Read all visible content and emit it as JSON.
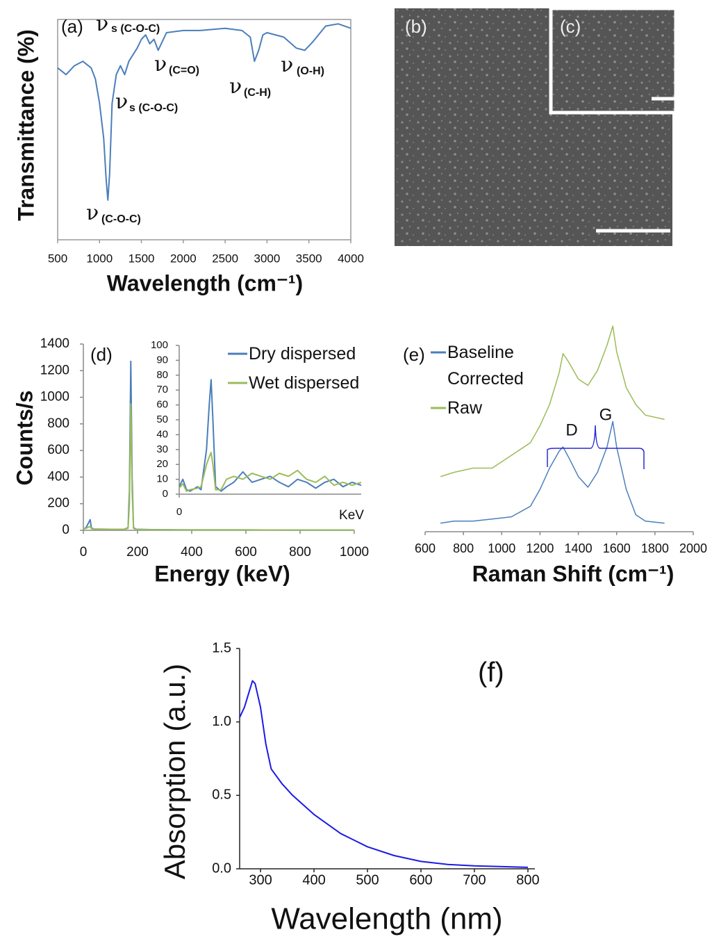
{
  "chart_data": [
    {
      "type": "line",
      "panel_label": "(a)",
      "xlabel": "Wavelength (cm⁻¹)",
      "ylabel": "Transmittance (%)",
      "xlim": [
        500,
        4000
      ],
      "xticks": [
        500,
        1000,
        1500,
        2000,
        2500,
        3000,
        3500,
        4000
      ],
      "ylim": [
        0,
        100
      ],
      "x": [
        500,
        600,
        700,
        800,
        900,
        950,
        1000,
        1050,
        1080,
        1100,
        1120,
        1150,
        1200,
        1250,
        1300,
        1350,
        1400,
        1450,
        1500,
        1550,
        1600,
        1650,
        1700,
        1750,
        1800,
        2000,
        2200,
        2500,
        2700,
        2800,
        2850,
        2900,
        2950,
        3000,
        3200,
        3350,
        3450,
        3550,
        3700,
        3850,
        4000
      ],
      "series": [
        {
          "color": "#4a7ebb",
          "values": [
            78,
            75,
            79,
            81,
            78,
            73,
            62,
            46,
            27,
            18,
            30,
            62,
            75,
            79,
            75,
            81,
            84,
            87,
            91,
            93,
            89,
            91,
            86,
            90,
            94,
            95,
            95,
            96,
            95,
            92,
            81,
            86,
            93,
            94,
            92,
            87,
            86,
            90,
            97,
            98,
            96
          ]
        }
      ],
      "annotations": [
        {
          "symbol": "ν",
          "sub": "s (C-O-C)"
        },
        {
          "symbol": "ν",
          "sub": "(C=O)"
        },
        {
          "symbol": "ν",
          "sub": "s (C-O-C)"
        },
        {
          "symbol": "ν",
          "sub": "(C-O-C)"
        },
        {
          "symbol": "ν",
          "sub": "(C-H)"
        },
        {
          "symbol": "ν",
          "sub": "(O-H)"
        }
      ]
    },
    {
      "type": "image",
      "panel_label": "(b)"
    },
    {
      "type": "image",
      "panel_label": "(c)"
    },
    {
      "type": "line",
      "panel_label": "(d)",
      "xlabel": "Energy (keV)",
      "ylabel": "Counts/s",
      "xlim": [
        0,
        1000
      ],
      "xticks": [
        0,
        200,
        400,
        600,
        800,
        1000
      ],
      "ylim": [
        0,
        1400
      ],
      "yticks": [
        0,
        200,
        400,
        600,
        800,
        1000,
        1200,
        1400
      ],
      "x": [
        0,
        10,
        25,
        30,
        40,
        100,
        150,
        165,
        170,
        175,
        180,
        185,
        195,
        250,
        400,
        600,
        800,
        1000
      ],
      "series": [
        {
          "name": "Dry dispersed",
          "color": "#4a7ebb",
          "values": [
            10,
            20,
            80,
            15,
            10,
            8,
            8,
            20,
            300,
            1270,
            400,
            20,
            8,
            5,
            3,
            3,
            2,
            2
          ]
        },
        {
          "name": "Wet dispersed",
          "color": "#9bbb59",
          "values": [
            10,
            15,
            30,
            12,
            8,
            8,
            8,
            15,
            200,
            950,
            300,
            15,
            6,
            4,
            3,
            3,
            2,
            2
          ]
        }
      ]
    },
    {
      "type": "line",
      "xlabel": "KeV",
      "xlim": [
        0,
        1000
      ],
      "xticks": [
        0
      ],
      "ylim": [
        0,
        100
      ],
      "yticks": [
        0,
        10,
        20,
        30,
        40,
        50,
        60,
        70,
        80,
        90,
        100
      ],
      "x": [
        0,
        20,
        40,
        60,
        100,
        120,
        150,
        165,
        175,
        185,
        200,
        230,
        260,
        300,
        350,
        400,
        450,
        500,
        550,
        600,
        650,
        700,
        750,
        800,
        850,
        900,
        950,
        1000
      ],
      "series": [
        {
          "color": "#4a7ebb",
          "values": [
            5,
            10,
            3,
            2,
            5,
            3,
            30,
            60,
            77,
            50,
            5,
            2,
            5,
            8,
            15,
            8,
            10,
            12,
            8,
            5,
            10,
            8,
            4,
            8,
            10,
            5,
            8,
            6
          ]
        },
        {
          "color": "#9bbb59",
          "values": [
            4,
            7,
            2,
            3,
            4,
            5,
            20,
            25,
            28,
            20,
            3,
            3,
            10,
            12,
            10,
            14,
            12,
            10,
            14,
            12,
            16,
            10,
            8,
            12,
            6,
            8,
            6,
            8
          ]
        }
      ]
    },
    {
      "type": "line",
      "panel_label": "(e)",
      "xlabel": "Raman Shift (cm⁻¹)",
      "xlim": [
        600,
        2000
      ],
      "xticks": [
        600,
        800,
        1000,
        1200,
        1400,
        1600,
        1800,
        2000
      ],
      "ylim": [
        0,
        100
      ],
      "x": [
        680,
        750,
        850,
        950,
        1050,
        1150,
        1200,
        1250,
        1300,
        1320,
        1350,
        1400,
        1450,
        1500,
        1550,
        1580,
        1600,
        1650,
        1700,
        1750,
        1850
      ],
      "series": [
        {
          "name": "Baseline Corrected",
          "color": "#4a7ebb",
          "values": [
            4,
            5,
            5,
            6,
            7,
            12,
            20,
            30,
            38,
            40,
            35,
            26,
            21,
            28,
            40,
            52,
            40,
            20,
            8,
            5,
            4
          ]
        },
        {
          "name": "Raw",
          "color": "#9bbb59",
          "values": [
            26,
            28,
            30,
            30,
            36,
            42,
            50,
            60,
            75,
            84,
            80,
            72,
            69,
            76,
            88,
            97,
            85,
            68,
            60,
            55,
            53
          ]
        }
      ],
      "annotations": [
        "D",
        "G"
      ]
    },
    {
      "type": "line",
      "panel_label": "(f)",
      "xlabel": "Wavelength (nm)",
      "ylabel": "Absorption (a.u.)",
      "xlim": [
        261,
        813
      ],
      "xticks": [
        300,
        400,
        500,
        600,
        700,
        800
      ],
      "ylim": [
        0,
        1.5
      ],
      "yticks": [
        {
          "value": 0,
          "label": "0.0"
        },
        {
          "value": 0.5,
          "label": "0.5"
        },
        {
          "value": 1,
          "label": "1.0"
        },
        1.5
      ],
      "x": [
        261,
        270,
        280,
        285,
        290,
        300,
        310,
        320,
        340,
        360,
        400,
        450,
        500,
        550,
        600,
        650,
        700,
        800
      ],
      "series": [
        {
          "color": "#1a1ae6",
          "values": [
            1.03,
            1.1,
            1.22,
            1.28,
            1.26,
            1.1,
            0.85,
            0.68,
            0.58,
            0.5,
            0.37,
            0.24,
            0.15,
            0.09,
            0.05,
            0.03,
            0.02,
            0.01
          ]
        }
      ]
    }
  ]
}
